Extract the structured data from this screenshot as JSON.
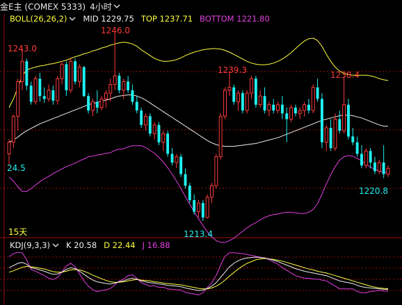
{
  "header": {
    "title": "金E主 (COMEX 5333)",
    "period": "4小时"
  },
  "boll": {
    "name": "BOLL(26,26,2)",
    "mid": "MID 1229.75",
    "top": "TOP 1237.71",
    "bottom": "BOTTOM 1221.80"
  },
  "kdj": {
    "name": "KDJ(9,3,3)",
    "k": "K 20.58",
    "d": "D 22.44",
    "j": "J 16.88"
  },
  "markers": {
    "high_left": "1243.0",
    "high_max": "1246.0",
    "peak_mid": "1239.3",
    "peak_right": "1238.4",
    "low_main": "1213.4",
    "low_right": "1220.8",
    "left_edge": "24.5",
    "span": "15天"
  },
  "colors": {
    "up": "#ff3b3b",
    "down": "#20f0f0",
    "mid": "#f0f0f0",
    "top": "#ffff40",
    "bottom": "#e040e0",
    "grid": "#a01010",
    "k": "#f0f0f0",
    "d": "#ffff40",
    "j": "#e040e0"
  },
  "chart_data": {
    "type": "candlestick",
    "price_range": [
      1211,
      1248
    ],
    "candles": [
      [
        1225.0,
        1227.5,
        1223.0,
        1227.0
      ],
      [
        1227.0,
        1231.8,
        1226.0,
        1231.5
      ],
      [
        1231.5,
        1238.0,
        1229.0,
        1237.5
      ],
      [
        1237.5,
        1243.0,
        1236.0,
        1241.0
      ],
      [
        1241.0,
        1241.5,
        1236.0,
        1236.8
      ],
      [
        1236.8,
        1237.5,
        1233.5,
        1234.0
      ],
      [
        1234.0,
        1238.5,
        1233.5,
        1238.0
      ],
      [
        1238.0,
        1239.0,
        1234.0,
        1235.0
      ],
      [
        1235.0,
        1236.5,
        1233.8,
        1234.5
      ],
      [
        1234.5,
        1237.0,
        1234.0,
        1236.0
      ],
      [
        1236.0,
        1236.8,
        1233.5,
        1234.2
      ],
      [
        1234.2,
        1238.5,
        1233.5,
        1238.0
      ],
      [
        1238.0,
        1241.0,
        1237.0,
        1240.5
      ],
      [
        1240.5,
        1241.0,
        1235.0,
        1236.0
      ],
      [
        1236.0,
        1241.5,
        1235.5,
        1241.0
      ],
      [
        1241.0,
        1241.5,
        1237.0,
        1237.5
      ],
      [
        1237.5,
        1240.5,
        1236.5,
        1240.0
      ],
      [
        1240.0,
        1240.2,
        1234.8,
        1235.0
      ],
      [
        1235.0,
        1235.5,
        1232.0,
        1232.5
      ],
      [
        1232.5,
        1234.5,
        1231.5,
        1234.0
      ],
      [
        1234.0,
        1236.0,
        1232.0,
        1233.0
      ],
      [
        1233.0,
        1235.0,
        1232.5,
        1234.5
      ],
      [
        1234.5,
        1236.0,
        1233.0,
        1235.5
      ],
      [
        1235.5,
        1238.0,
        1234.0,
        1237.0
      ],
      [
        1237.0,
        1246.0,
        1236.0,
        1238.5
      ],
      [
        1238.5,
        1239.0,
        1235.5,
        1236.0
      ],
      [
        1236.0,
        1238.0,
        1234.5,
        1237.5
      ],
      [
        1237.5,
        1238.5,
        1235.5,
        1236.0
      ],
      [
        1236.0,
        1237.0,
        1233.5,
        1234.0
      ],
      [
        1234.0,
        1235.0,
        1232.0,
        1232.5
      ],
      [
        1232.5,
        1233.0,
        1229.5,
        1230.0
      ],
      [
        1230.0,
        1232.0,
        1229.0,
        1231.5
      ],
      [
        1231.5,
        1232.0,
        1228.0,
        1228.5
      ],
      [
        1228.5,
        1230.5,
        1227.5,
        1230.0
      ],
      [
        1230.0,
        1230.5,
        1226.5,
        1227.0
      ],
      [
        1227.0,
        1229.0,
        1225.5,
        1228.5
      ],
      [
        1228.5,
        1229.0,
        1224.5,
        1225.0
      ],
      [
        1225.0,
        1226.0,
        1223.0,
        1223.5
      ],
      [
        1223.5,
        1225.0,
        1222.5,
        1224.5
      ],
      [
        1224.5,
        1225.0,
        1221.0,
        1221.5
      ],
      [
        1221.5,
        1222.5,
        1219.0,
        1219.5
      ],
      [
        1219.5,
        1220.0,
        1216.5,
        1217.0
      ],
      [
        1217.0,
        1218.0,
        1214.5,
        1215.0
      ],
      [
        1215.0,
        1217.0,
        1214.0,
        1216.5
      ],
      [
        1216.5,
        1217.0,
        1213.4,
        1214.0
      ],
      [
        1214.0,
        1218.0,
        1213.8,
        1217.5
      ],
      [
        1217.5,
        1220.0,
        1216.5,
        1219.5
      ],
      [
        1219.5,
        1225.0,
        1219.0,
        1224.5
      ],
      [
        1224.5,
        1232.0,
        1224.0,
        1231.5
      ],
      [
        1231.5,
        1236.5,
        1231.0,
        1236.0
      ],
      [
        1236.0,
        1239.3,
        1235.0,
        1236.5
      ],
      [
        1236.5,
        1237.0,
        1233.5,
        1234.0
      ],
      [
        1234.0,
        1236.0,
        1232.5,
        1235.5
      ],
      [
        1235.5,
        1236.0,
        1232.0,
        1232.5
      ],
      [
        1232.5,
        1236.0,
        1232.0,
        1235.5
      ],
      [
        1235.5,
        1238.5,
        1234.5,
        1238.0
      ],
      [
        1238.0,
        1238.5,
        1233.0,
        1233.5
      ],
      [
        1233.5,
        1236.0,
        1233.0,
        1235.0
      ],
      [
        1235.0,
        1236.5,
        1232.0,
        1232.5
      ],
      [
        1232.5,
        1234.0,
        1231.5,
        1233.5
      ],
      [
        1233.5,
        1234.5,
        1232.0,
        1232.5
      ],
      [
        1232.5,
        1234.0,
        1232.0,
        1233.5
      ],
      [
        1233.5,
        1235.0,
        1231.0,
        1232.0
      ],
      [
        1232.0,
        1233.0,
        1227.0,
        1231.0
      ],
      [
        1231.0,
        1233.5,
        1230.5,
        1233.0
      ],
      [
        1233.0,
        1233.5,
        1231.5,
        1232.0
      ],
      [
        1232.0,
        1233.0,
        1231.0,
        1232.5
      ],
      [
        1232.5,
        1234.0,
        1231.5,
        1233.5
      ],
      [
        1233.5,
        1234.5,
        1232.0,
        1232.5
      ],
      [
        1232.5,
        1237.0,
        1232.0,
        1236.5
      ],
      [
        1236.5,
        1238.0,
        1234.0,
        1234.5
      ],
      [
        1234.5,
        1235.5,
        1226.0,
        1227.0
      ],
      [
        1227.0,
        1230.0,
        1225.5,
        1229.5
      ],
      [
        1229.5,
        1231.0,
        1225.5,
        1226.0
      ],
      [
        1226.0,
        1232.0,
        1225.5,
        1231.0
      ],
      [
        1231.0,
        1232.5,
        1228.5,
        1229.0
      ],
      [
        1229.0,
        1238.4,
        1228.5,
        1233.5
      ],
      [
        1233.5,
        1234.5,
        1227.5,
        1228.0
      ],
      [
        1228.0,
        1229.5,
        1226.5,
        1227.0
      ],
      [
        1227.0,
        1228.0,
        1224.5,
        1225.0
      ],
      [
        1225.0,
        1226.5,
        1222.5,
        1223.0
      ],
      [
        1223.0,
        1226.0,
        1222.5,
        1225.5
      ],
      [
        1225.5,
        1226.0,
        1222.5,
        1223.5
      ],
      [
        1223.5,
        1224.5,
        1221.5,
        1222.0
      ],
      [
        1222.0,
        1224.0,
        1221.5,
        1223.5
      ],
      [
        1223.5,
        1226.5,
        1220.8,
        1221.5
      ],
      [
        1221.5,
        1223.0,
        1221.0,
        1222.5
      ]
    ],
    "boll_mid": [
      1227,
      1227.4,
      1227.9,
      1228.5,
      1229,
      1229.4,
      1229.8,
      1230.2,
      1230.5,
      1230.8,
      1231.1,
      1231.4,
      1231.7,
      1232,
      1232.3,
      1232.6,
      1232.9,
      1233.2,
      1233.5,
      1233.7,
      1233.9,
      1234.1,
      1234.3,
      1234.5,
      1234.8,
      1235,
      1235.1,
      1235.2,
      1235.2,
      1235,
      1234.7,
      1234.3,
      1233.8,
      1233.3,
      1232.8,
      1232.3,
      1231.8,
      1231.3,
      1230.8,
      1230.3,
      1229.8,
      1229.3,
      1228.8,
      1228.3,
      1227.8,
      1227.3,
      1226.9,
      1226.6,
      1226.4,
      1226.3,
      1226.3,
      1226.3,
      1226.4,
      1226.5,
      1226.6,
      1226.7,
      1226.8,
      1227,
      1227.2,
      1227.4,
      1227.6,
      1227.8,
      1228.1,
      1228.4,
      1228.7,
      1229,
      1229.3,
      1229.6,
      1229.9,
      1230.2,
      1230.5,
      1230.8,
      1231,
      1231.2,
      1231.4,
      1231.6,
      1231.7,
      1231.7,
      1231.6,
      1231.4,
      1231.2,
      1230.9,
      1230.6,
      1230.3,
      1230,
      1229.8,
      1229.75
    ],
    "boll_top": [
      1233,
      1234.5,
      1236.5,
      1238.5,
      1239.5,
      1239.8,
      1240,
      1240.2,
      1240.3,
      1240.5,
      1240.6,
      1240.8,
      1241,
      1241.2,
      1241.5,
      1241.8,
      1242,
      1242.3,
      1242.5,
      1242.8,
      1243,
      1243.3,
      1243.5,
      1243.8,
      1244,
      1244.2,
      1244.3,
      1244.2,
      1244,
      1243.6,
      1243,
      1242.5,
      1242,
      1241.5,
      1241.2,
      1241,
      1241,
      1241.1,
      1241.3,
      1241.6,
      1242,
      1242.3,
      1242.6,
      1242.8,
      1243,
      1243.1,
      1243.2,
      1243.2,
      1243.1,
      1242.9,
      1242.6,
      1242.2,
      1241.8,
      1241.4,
      1241,
      1240.7,
      1240.5,
      1240.4,
      1240.4,
      1240.5,
      1240.7,
      1241,
      1241.4,
      1241.9,
      1242.5,
      1243.2,
      1243.9,
      1244.5,
      1244.9,
      1245,
      1244.6,
      1243.6,
      1242.2,
      1241,
      1240,
      1239.3,
      1238.9,
      1238.7,
      1238.6,
      1238.6,
      1238.6,
      1238.6,
      1238.5,
      1238.3,
      1238,
      1237.8,
      1237.71
    ],
    "boll_bottom": [
      1221,
      1220.3,
      1219.3,
      1218.5,
      1218.5,
      1219,
      1219.6,
      1220.2,
      1220.7,
      1221.1,
      1221.6,
      1222,
      1222.4,
      1222.8,
      1223.1,
      1223.4,
      1223.8,
      1224.1,
      1224.5,
      1224.6,
      1224.8,
      1224.9,
      1225.1,
      1225.2,
      1225.6,
      1225.8,
      1225.9,
      1226.2,
      1226.4,
      1226.4,
      1226.4,
      1226.1,
      1225.6,
      1225.1,
      1224.4,
      1223.6,
      1222.6,
      1221.5,
      1220.3,
      1219,
      1217.6,
      1216.3,
      1215,
      1213.8,
      1212.6,
      1211.5,
      1210.6,
      1210,
      1209.7,
      1209.7,
      1210,
      1210.4,
      1211,
      1211.6,
      1212.2,
      1212.7,
      1213.1,
      1213.6,
      1214,
      1214.3,
      1214.5,
      1214.6,
      1214.8,
      1214.9,
      1214.9,
      1214.8,
      1214.7,
      1214.7,
      1214.9,
      1215.4,
      1216.4,
      1218,
      1219.8,
      1221.4,
      1222.8,
      1223.9,
      1224.5,
      1224.7,
      1224.6,
      1224.2,
      1223.8,
      1223.2,
      1222.7,
      1222.3,
      1222,
      1221.8,
      1221.8
    ],
    "kdj_range": [
      -10,
      110
    ],
    "k": [
      70,
      75,
      80,
      82,
      78,
      70,
      68,
      65,
      62,
      58,
      55,
      56,
      60,
      66,
      70,
      68,
      62,
      55,
      48,
      42,
      38,
      36,
      34,
      33,
      35,
      38,
      40,
      44,
      46,
      44,
      40,
      38,
      36,
      35,
      33,
      32,
      30,
      29,
      28,
      27,
      24,
      22,
      20,
      18,
      19,
      23,
      28,
      36,
      48,
      60,
      72,
      80,
      86,
      90,
      92,
      93,
      94,
      93,
      92,
      90,
      87,
      84,
      80,
      76,
      72,
      68,
      65,
      62,
      60,
      58,
      56,
      54,
      52,
      48,
      44,
      40,
      38,
      36,
      34,
      30,
      27,
      25,
      24,
      23,
      22,
      21,
      20.58
    ],
    "d": [
      60,
      63,
      67,
      71,
      73,
      72,
      71,
      69,
      67,
      64,
      61,
      60,
      60,
      62,
      65,
      66,
      65,
      62,
      58,
      53,
      49,
      45,
      41,
      38,
      37,
      37,
      38,
      40,
      42,
      43,
      42,
      41,
      40,
      38,
      37,
      35,
      34,
      33,
      32,
      31,
      29,
      27,
      25,
      23,
      22,
      22,
      24,
      28,
      34,
      42,
      51,
      59,
      67,
      74,
      80,
      84,
      88,
      90,
      91,
      90,
      89,
      87,
      85,
      82,
      79,
      76,
      73,
      70,
      67,
      65,
      62,
      60,
      58,
      55,
      52,
      49,
      46,
      43,
      40,
      37,
      34,
      31,
      28,
      26,
      24,
      23,
      22.44
    ],
    "j": [
      95,
      102,
      105,
      104,
      88,
      66,
      62,
      57,
      52,
      46,
      43,
      48,
      60,
      74,
      80,
      72,
      56,
      40,
      28,
      20,
      16,
      18,
      20,
      23,
      31,
      40,
      44,
      52,
      54,
      46,
      36,
      32,
      28,
      29,
      25,
      26,
      22,
      21,
      20,
      19,
      14,
      12,
      10,
      8,
      13,
      25,
      36,
      52,
      76,
      96,
      104,
      104,
      103,
      102,
      100,
      98,
      96,
      94,
      92,
      88,
      83,
      78,
      70,
      64,
      58,
      52,
      49,
      46,
      46,
      44,
      44,
      42,
      40,
      34,
      28,
      22,
      22,
      22,
      22,
      16,
      13,
      13,
      16,
      17,
      18,
      17,
      16.88
    ]
  }
}
